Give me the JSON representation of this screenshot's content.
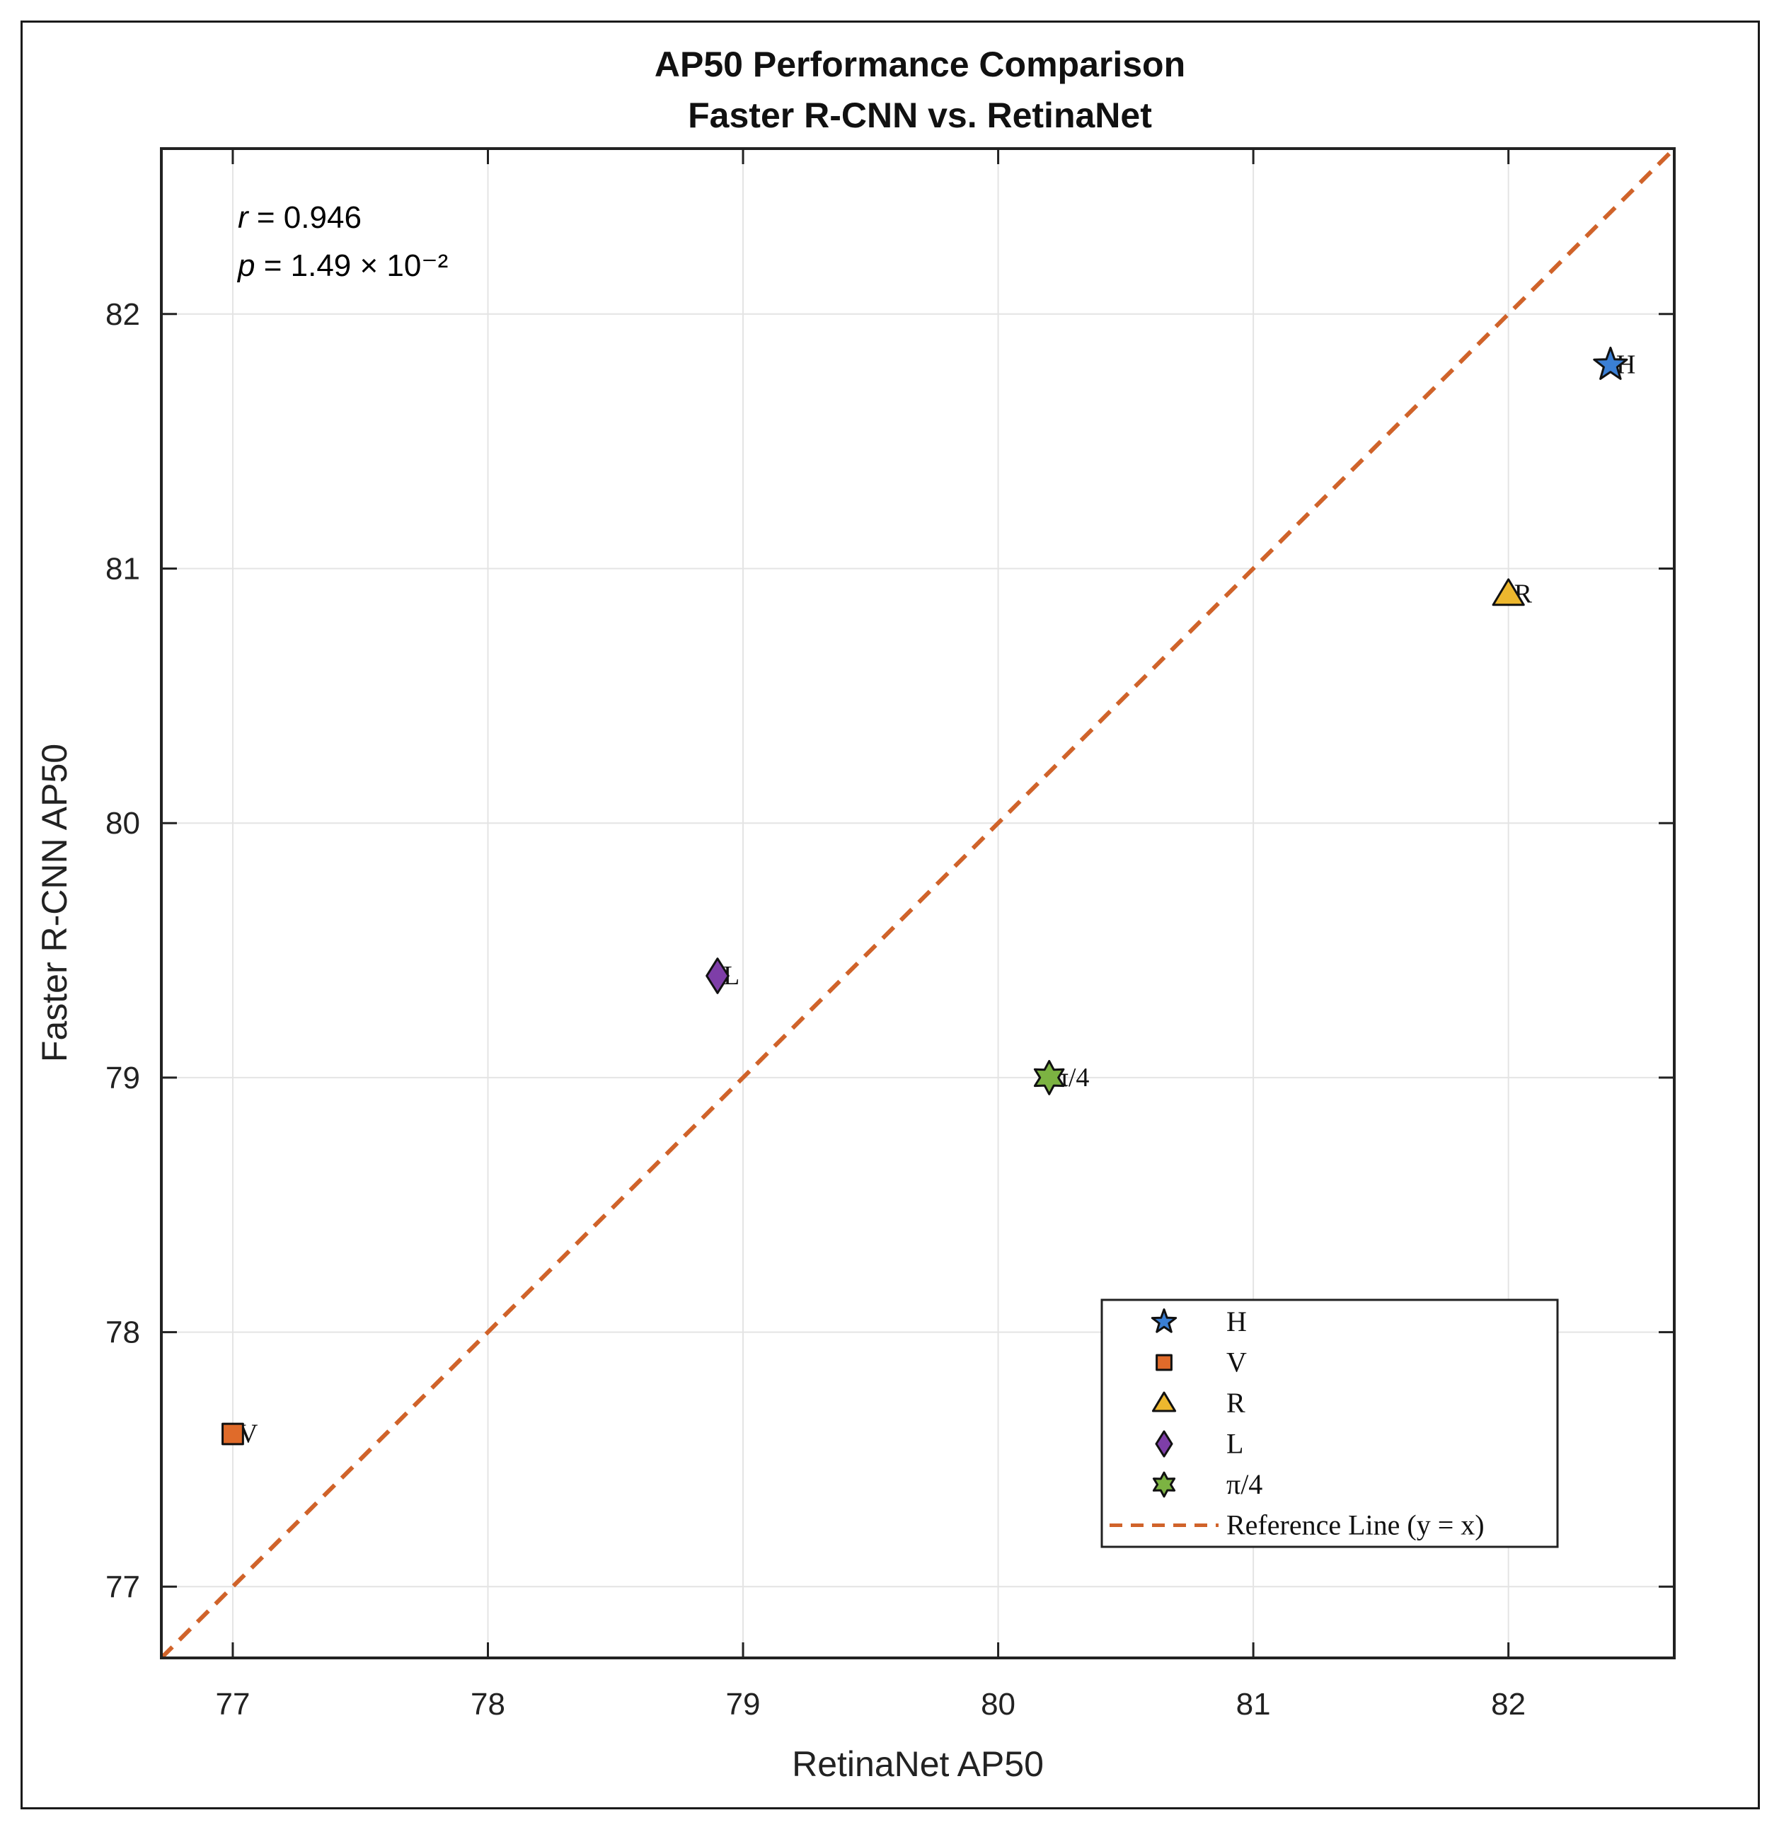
{
  "chart_data": {
    "type": "scatter",
    "title_line1": "AP50 Performance Comparison",
    "title_line2": "Faster R-CNN vs. RetinaNet",
    "xlabel": "RetinaNet AP50",
    "ylabel": "Faster R-CNN AP50",
    "xlim": [
      76.72,
      82.65
    ],
    "ylim": [
      76.72,
      82.65
    ],
    "xticks": [
      77,
      78,
      79,
      80,
      81,
      82
    ],
    "yticks": [
      77,
      78,
      79,
      80,
      81,
      82
    ],
    "grid": true,
    "stats": {
      "r_symbol": "r",
      "r_text": " = 0.946",
      "p_symbol": "p",
      "p_text": " = 1.49 × 10⁻²"
    },
    "points": [
      {
        "name": "H",
        "label": "H",
        "x": 82.4,
        "y": 81.8,
        "marker": "star5",
        "color": "#3a7fd5"
      },
      {
        "name": "V",
        "label": "V",
        "x": 77.0,
        "y": 77.6,
        "marker": "square",
        "color": "#e06b2a"
      },
      {
        "name": "R",
        "label": "R",
        "x": 82.0,
        "y": 80.9,
        "marker": "triangle",
        "color": "#edb72e"
      },
      {
        "name": "L",
        "label": "L",
        "x": 78.9,
        "y": 79.4,
        "marker": "diamond",
        "color": "#7e3ea8"
      },
      {
        "name": "π/4",
        "label": "π/4",
        "x": 80.2,
        "y": 79.0,
        "marker": "hexagram",
        "color": "#7cb342"
      }
    ],
    "reference_line": {
      "label": "Reference Line (y = x)",
      "color": "#d0632a"
    },
    "legend": {
      "position": "bottom-right",
      "entries": [
        "H",
        "V",
        "R",
        "L",
        "π/4",
        "Reference Line (y = x)"
      ]
    }
  }
}
